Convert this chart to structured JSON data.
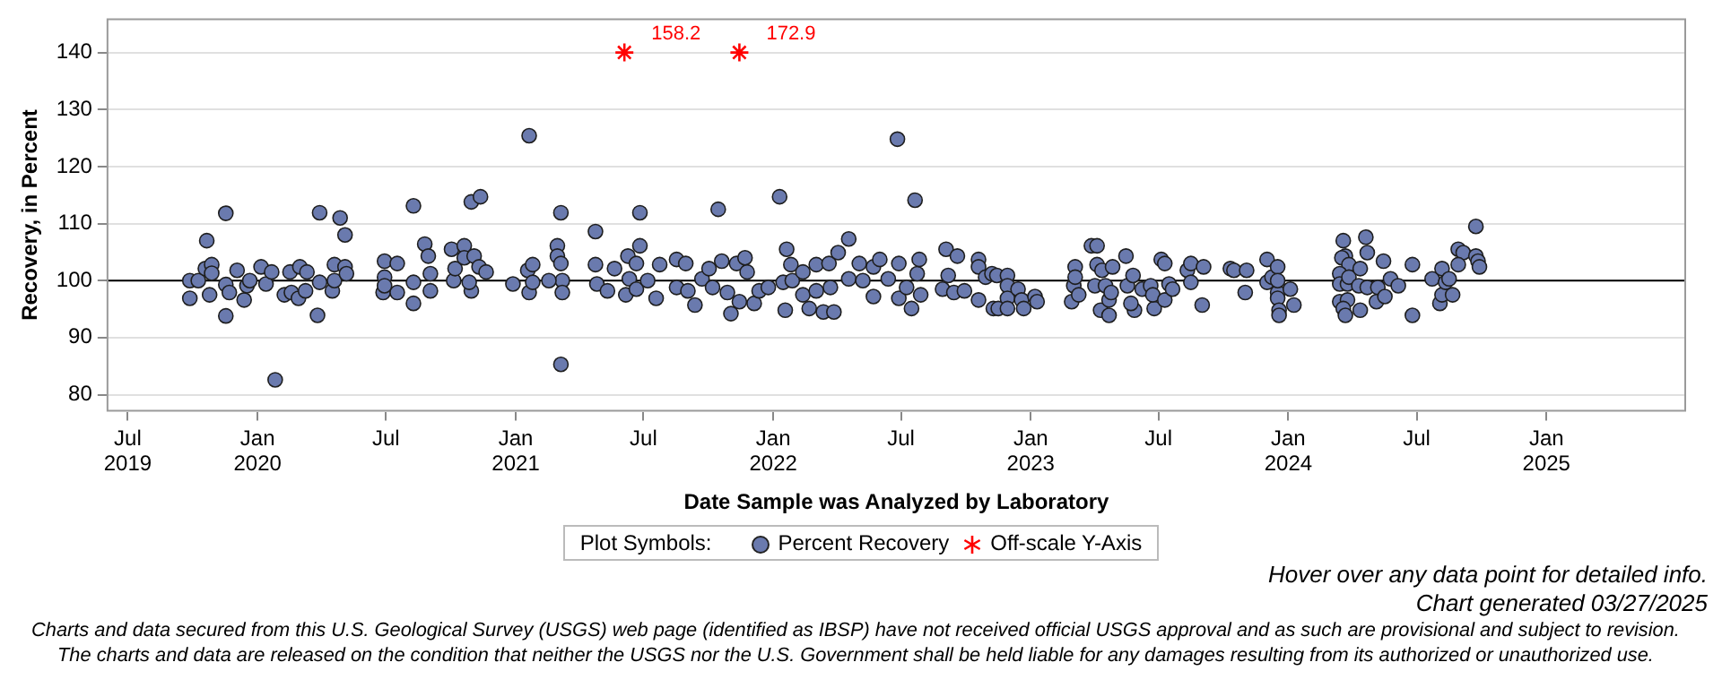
{
  "chart_data": {
    "type": "scatter",
    "xlabel": "Date Sample was Analyzed by Laboratory",
    "ylabel": "Recovery, in Percent",
    "legend_title": "Plot Symbols:",
    "legend": "bottom",
    "grid": "y",
    "xlim": [
      "2019-06-01",
      "2025-07-18"
    ],
    "ylim": [
      77,
      146
    ],
    "yticks": [
      80,
      90,
      100,
      110,
      120,
      130,
      140
    ],
    "xticks": [
      {
        "value": "2019-07-01",
        "label": "Jul 2019"
      },
      {
        "value": "2020-01-01",
        "label": "Jan 2020"
      },
      {
        "value": "2020-07-01",
        "label": "Jul"
      },
      {
        "value": "2021-01-01",
        "label": "Jan 2021"
      },
      {
        "value": "2021-07-01",
        "label": "Jul"
      },
      {
        "value": "2022-01-01",
        "label": "Jan 2022"
      },
      {
        "value": "2022-07-01",
        "label": "Jul"
      },
      {
        "value": "2023-01-01",
        "label": "Jan 2023"
      },
      {
        "value": "2023-07-01",
        "label": "Jul"
      },
      {
        "value": "2024-01-01",
        "label": "Jan 2024"
      },
      {
        "value": "2024-07-01",
        "label": "Jul"
      },
      {
        "value": "2025-01-01",
        "label": "Jan 2025"
      }
    ],
    "ref_lines": [
      {
        "axis": "y",
        "value": 100,
        "color": "#000000"
      }
    ],
    "series": [
      {
        "name": "Percent Recovery",
        "marker": "circle",
        "color": "#6a7aae",
        "x": [
          "2019-09-27",
          "2019-09-27",
          "2019-10-09",
          "2019-10-19",
          "2019-10-21",
          "2019-10-28",
          "2019-10-28",
          "2019-10-25",
          "2019-11-17",
          "2019-11-17",
          "2019-11-17",
          "2019-11-22",
          "2019-12-03",
          "2019-12-13",
          "2019-12-17",
          "2019-12-21",
          "2020-01-06",
          "2020-01-13",
          "2020-01-21",
          "2020-01-26",
          "2020-02-08",
          "2020-02-16",
          "2020-02-18",
          "2020-02-28",
          "2020-03-01",
          "2020-03-09",
          "2020-03-11",
          "2020-03-26",
          "2020-03-29",
          "2020-03-29",
          "2020-04-16",
          "2020-04-19",
          "2020-04-19",
          "2020-04-27",
          "2020-05-04",
          "2020-05-04",
          "2020-05-06",
          "2020-06-27",
          "2020-06-29",
          "2020-06-29",
          "2020-06-29",
          "2020-07-17",
          "2020-07-17",
          "2020-08-09",
          "2020-08-09",
          "2020-08-09",
          "2020-08-25",
          "2020-08-30",
          "2020-09-02",
          "2020-09-02",
          "2020-10-02",
          "2020-10-05",
          "2020-10-07",
          "2020-10-20",
          "2020-10-20",
          "2020-10-30",
          "2020-11-12",
          "2020-11-03",
          "2020-10-30",
          "2020-10-27",
          "2020-11-10",
          "2020-11-20",
          "2020-12-28",
          "2021-01-20",
          "2021-01-18",
          "2021-01-20",
          "2021-01-25",
          "2021-01-25",
          "2021-03-01",
          "2021-03-01",
          "2021-03-06",
          "2021-03-06",
          "2021-03-08",
          "2021-03-08",
          "2021-03-06",
          "2021-02-17",
          "2021-04-24",
          "2021-04-24",
          "2021-04-26",
          "2021-05-11",
          "2021-05-21",
          "2021-06-06",
          "2021-06-09",
          "2021-06-11",
          "2021-06-21",
          "2021-06-26",
          "2021-06-26",
          "2021-06-21",
          "2021-07-07",
          "2021-07-19",
          "2021-07-24",
          "2021-08-17",
          "2021-08-17",
          "2021-08-30",
          "2021-09-02",
          "2021-09-12",
          "2021-09-22",
          "2021-10-02",
          "2021-10-07",
          "2021-10-15",
          "2021-10-20",
          "2021-10-28",
          "2021-11-02",
          "2021-11-10",
          "2021-11-22",
          "2021-11-14",
          "2021-11-25",
          "2021-12-05",
          "2021-12-12",
          "2021-12-25",
          "2022-01-10",
          "2022-01-15",
          "2022-01-20",
          "2022-01-18",
          "2022-01-26",
          "2022-01-28",
          "2022-02-12",
          "2022-02-12",
          "2022-02-21",
          "2022-03-03",
          "2022-03-03",
          "2022-03-13",
          "2022-03-21",
          "2022-03-23",
          "2022-03-28",
          "2022-04-03",
          "2022-04-18",
          "2022-04-18",
          "2022-05-03",
          "2022-05-08",
          "2022-05-23",
          "2022-05-23",
          "2022-06-01",
          "2022-06-13",
          "2022-06-26",
          "2022-06-28",
          "2022-06-28",
          "2022-07-09",
          "2022-07-16",
          "2022-07-21",
          "2022-07-24",
          "2022-07-27",
          "2022-07-29",
          "2022-08-29",
          "2022-09-03",
          "2022-09-19",
          "2022-09-06",
          "2022-09-14",
          "2022-09-29",
          "2022-10-19",
          "2022-10-19",
          "2022-10-19",
          "2022-10-29",
          "2022-11-07",
          "2022-11-09",
          "2022-11-16",
          "2022-11-14",
          "2022-11-29",
          "2022-11-29",
          "2022-11-29",
          "2022-11-29",
          "2022-12-14",
          "2022-12-19",
          "2022-12-22",
          "2023-01-07",
          "2023-01-10",
          "2023-02-28",
          "2023-03-03",
          "2023-03-05",
          "2023-03-05",
          "2023-03-10",
          "2023-03-28",
          "2023-04-05",
          "2023-04-05",
          "2023-04-02",
          "2023-04-12",
          "2023-04-17",
          "2023-04-10",
          "2023-04-22",
          "2023-04-22",
          "2023-04-27",
          "2023-04-25",
          "2023-05-16",
          "2023-05-18",
          "2023-05-26",
          "2023-05-28",
          "2023-05-23",
          "2023-06-08",
          "2023-06-20",
          "2023-06-25",
          "2023-06-23",
          "2023-07-05",
          "2023-07-10",
          "2023-07-10",
          "2023-07-16",
          "2023-07-21",
          "2023-08-11",
          "2023-08-16",
          "2023-08-16",
          "2023-09-01",
          "2023-09-03",
          "2023-10-11",
          "2023-10-16",
          "2023-11-03",
          "2023-11-01",
          "2023-12-02",
          "2023-12-02",
          "2023-12-09",
          "2023-12-17",
          "2023-12-17",
          "2023-12-17",
          "2023-12-19",
          "2024-01-04",
          "2024-01-09",
          "2023-12-17",
          "2023-12-19",
          "2024-03-19",
          "2024-03-22",
          "2024-03-17",
          "2024-03-27",
          "2024-03-14",
          "2024-03-14",
          "2024-03-25",
          "2024-03-27",
          "2024-03-14",
          "2024-03-25",
          "2024-03-19",
          "2024-03-22",
          "2024-04-12",
          "2024-04-12",
          "2024-04-10",
          "2024-04-20",
          "2024-04-22",
          "2024-04-22",
          "2024-05-07",
          "2024-05-05",
          "2024-05-15",
          "2024-05-17",
          "2024-05-25",
          "2024-06-05",
          "2024-06-25",
          "2024-06-25",
          "2024-07-23",
          "2024-08-03",
          "2024-08-06",
          "2024-08-06",
          "2024-08-11",
          "2024-08-16",
          "2024-08-21",
          "2024-08-29",
          "2024-09-05",
          "2024-08-29",
          "2024-09-23",
          "2024-09-23",
          "2024-09-26",
          "2024-09-28"
        ],
        "values": [
          100,
          96.9,
          100,
          102.1,
          107,
          102.8,
          101.3,
          97.5,
          111.8,
          99.3,
          93.8,
          97.9,
          101.8,
          96.6,
          99.1,
          100,
          102.4,
          99.4,
          101.5,
          82.6,
          97.5,
          101.5,
          97.9,
          96.9,
          102.4,
          98.2,
          101.5,
          93.9,
          111.9,
          99.7,
          98.2,
          100,
          102.8,
          111,
          108,
          102.4,
          101.2,
          97.9,
          100.6,
          103.4,
          99.1,
          103,
          97.9,
          113.1,
          99.7,
          96,
          106.4,
          104.3,
          101.2,
          98.2,
          105.5,
          100,
          102.1,
          106.1,
          104,
          113.8,
          114.7,
          104.3,
          98.2,
          99.7,
          102.4,
          101.5,
          99.4,
          125.4,
          101.8,
          97.9,
          102.8,
          99.7,
          106.1,
          104.3,
          111.9,
          103,
          100,
          97.9,
          85.3,
          100,
          108.6,
          102.8,
          99.4,
          98.2,
          102.1,
          97.5,
          104.3,
          100.3,
          98.5,
          111.9,
          106.1,
          103,
          100,
          96.9,
          102.8,
          103.7,
          98.8,
          103,
          98.2,
          95.7,
          100.3,
          102.1,
          98.8,
          112.5,
          103.4,
          97.9,
          94.2,
          103,
          104,
          96.3,
          101.5,
          96,
          98.2,
          98.8,
          114.7,
          99.7,
          105.5,
          94.8,
          102.8,
          100,
          101.5,
          97.5,
          95.1,
          102.8,
          98.2,
          94.5,
          103,
          98.8,
          94.5,
          104.9,
          100.3,
          107.3,
          103,
          100,
          97.2,
          102.4,
          103.7,
          100.3,
          124.8,
          103,
          96.9,
          98.8,
          95.1,
          114.1,
          101.2,
          103.7,
          97.5,
          98.5,
          105.5,
          104.3,
          100.9,
          97.9,
          98.2,
          103.7,
          102.4,
          96.6,
          100.6,
          101.2,
          95.1,
          95.1,
          100.9,
          100.9,
          99.1,
          96.9,
          95.1,
          98.5,
          96.6,
          95.1,
          97.2,
          96.3,
          96.3,
          99.1,
          102.4,
          100.6,
          97.5,
          106.1,
          106.1,
          102.8,
          99.1,
          101.8,
          99.1,
          94.8,
          93.9,
          96.6,
          102.4,
          97.9,
          104.3,
          99.1,
          100.9,
          94.8,
          96,
          98.5,
          99.1,
          95.1,
          97.5,
          103.7,
          103,
          96.6,
          99.4,
          98.5,
          101.8,
          103,
          99.7,
          95.7,
          102.4,
          102.1,
          101.8,
          101.8,
          97.9,
          103.7,
          99.7,
          100.6,
          102.4,
          97.9,
          96.9,
          94.8,
          98.5,
          95.7,
          100,
          93.9,
          107,
          104.3,
          104,
          102.8,
          101.2,
          99.4,
          99.4,
          100.6,
          96.3,
          96.6,
          95.1,
          93.9,
          102.1,
          94.8,
          99.1,
          107.6,
          104.9,
          98.8,
          98.8,
          96.3,
          103.4,
          97.2,
          100.3,
          99.1,
          102.8,
          93.9,
          100.3,
          96,
          102.1,
          97.5,
          99.7,
          100.3,
          97.5,
          105.5,
          104.9,
          102.8,
          109.5,
          104.3,
          103.4,
          102.4
        ]
      },
      {
        "name": "Off-scale Y-Axis",
        "marker": "cross",
        "color": "#ff0000",
        "x": [
          "2021-06-04",
          "2021-11-14"
        ],
        "values": [
          140,
          140
        ]
      }
    ],
    "annotations": [
      {
        "text": "158.2",
        "x": "2021-06-04",
        "y": 140
      },
      {
        "text": "172.9",
        "x": "2021-11-14",
        "y": 140
      },
      "Hover over any data point for detailed info.",
      "Chart generated 03/27/2025",
      "Charts and data secured from this U.S. Geological Survey (USGS) web page (identified as IBSP) have not received official USGS approval and as such are provisional and subject to revision.",
      "The charts and data are released on the condition that neither the USGS nor the U.S. Government shall be held liable for any damages resulting from its authorized or unauthorized use."
    ]
  }
}
